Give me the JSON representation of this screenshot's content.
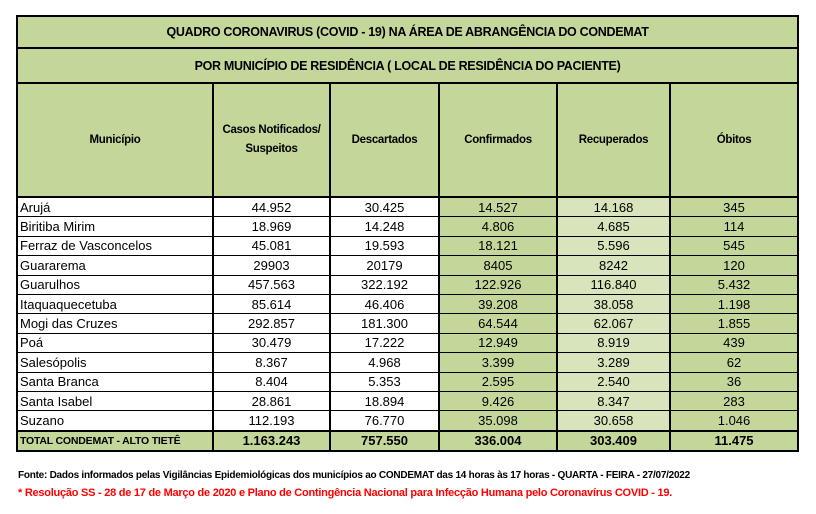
{
  "title": "QUADRO CORONAVIRUS (COVID - 19) NA ÁREA DE ABRANGÊNCIA DO CONDEMAT",
  "subtitle": "POR MUNICÍPIO DE RESIDÊNCIA ( LOCAL DE RESIDÊNCIA DO PACIENTE)",
  "colors": {
    "header": "#c4d79b",
    "recuperados": "#d8e4bc",
    "note": "#ff0000"
  },
  "columns": [
    "Município",
    "Casos Notificados/ Suspeitos",
    "Descartados",
    "Confirmados",
    "Recuperados",
    "Óbitos"
  ],
  "rows": [
    [
      "Arujá",
      "44.952",
      "30.425",
      "14.527",
      "14.168",
      "345"
    ],
    [
      "Biritiba Mirim",
      "18.969",
      "14.248",
      "4.806",
      "4.685",
      "114"
    ],
    [
      "Ferraz de Vasconcelos",
      "45.081",
      "19.593",
      "18.121",
      "5.596",
      "545"
    ],
    [
      "Guararema",
      "29903",
      "20179",
      "8405",
      "8242",
      "120"
    ],
    [
      "Guarulhos",
      "457.563",
      "322.192",
      "122.926",
      "116.840",
      "5.432"
    ],
    [
      "Itaquaquecetuba",
      "85.614",
      "46.406",
      "39.208",
      "38.058",
      "1.198"
    ],
    [
      "Mogi das Cruzes",
      "292.857",
      "181.300",
      "64.544",
      "62.067",
      "1.855"
    ],
    [
      "Poá",
      "30.479",
      "17.222",
      "12.949",
      "8.919",
      "439"
    ],
    [
      "Salesópolis",
      "8.367",
      "4.968",
      "3.399",
      "3.289",
      "62"
    ],
    [
      "Santa Branca",
      "8.404",
      "5.353",
      "2.595",
      "2.540",
      "36"
    ],
    [
      "Santa Isabel",
      "28.861",
      "18.894",
      "9.426",
      "8.347",
      "283"
    ],
    [
      "Suzano",
      "112.193",
      "76.770",
      "35.098",
      "30.658",
      "1.046"
    ]
  ],
  "total": [
    "TOTAL CONDEMAT - ALTO TIETÊ",
    "1.163.243",
    "757.550",
    "336.004",
    "303.409",
    "11.475"
  ],
  "fonte": "Fonte: Dados informados pelas Vigilâncias Epidemiológicas dos municípios ao CONDEMAT das 14 horas às 17 horas - QUARTA - FEIRA - 27/07/2022",
  "nota": "* Resolução SS - 28 de 17 de Março de 2020 e Plano de Contingência Nacional para Infecção Humana pelo Coronavírus COVID - 19."
}
